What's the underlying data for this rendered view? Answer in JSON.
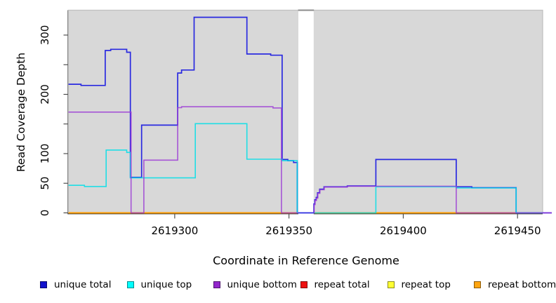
{
  "chart_data": {
    "type": "line",
    "step": true,
    "title": "",
    "xlabel": "Coordinate in Reference Genome",
    "ylabel": "Read Coverage Depth",
    "xlim": [
      2619253.5,
      2619461
    ],
    "ylim": [
      0,
      342
    ],
    "xticks": [
      2619300,
      2619350,
      2619400,
      2619450
    ],
    "yticks": [
      0,
      50,
      100,
      150,
      200,
      250,
      300
    ],
    "ytick_labels": [
      "0",
      "50",
      "100",
      "",
      "200",
      "",
      "300"
    ],
    "grid": false,
    "plot_bg": "#d8d8d8",
    "border_color": "#bfbfbf",
    "axis_color": "#2e2e2e",
    "tick_color": "#404040",
    "no_data_region": {
      "x1": 2619354.1,
      "x2": 2619360.8,
      "fill": "#ffffff",
      "cap_color": "#909090"
    },
    "series": [
      {
        "name": "repeat total",
        "color": "#dd2222",
        "alpha": 1,
        "width": 1.5,
        "runs": [
          {
            "steps": [
              [
                2619253.5,
                0
              ]
            ],
            "end": 2619354.1
          },
          {
            "steps": [
              [
                2619360.8,
                0
              ]
            ],
            "end": 2619461
          }
        ]
      },
      {
        "name": "repeat top",
        "color": "#f5f500",
        "alpha": 1,
        "width": 1.5,
        "runs": [
          {
            "steps": [
              [
                2619253.5,
                0
              ]
            ],
            "end": 2619354.1
          },
          {
            "steps": [
              [
                2619360.8,
                0
              ]
            ],
            "end": 2619461
          }
        ]
      },
      {
        "name": "repeat bottom",
        "color": "#ff9d00",
        "alpha": 1,
        "width": 2,
        "runs": [
          {
            "steps": [
              [
                2619253.5,
                0
              ]
            ],
            "end": 2619354.1
          },
          {
            "steps": [
              [
                2619360.8,
                0
              ]
            ],
            "end": 2619461
          }
        ]
      },
      {
        "name": "unique total",
        "color": "#2a2ae0",
        "alpha": 1,
        "width": 1.7,
        "runs": [
          {
            "steps": [
              [
                2619253.5,
                217
              ],
              [
                2619259,
                215
              ],
              [
                2619269.6,
                274
              ],
              [
                2619272,
                276
              ],
              [
                2619279,
                271
              ],
              [
                2619280.6,
                60
              ],
              [
                2619285.5,
                148
              ],
              [
                2619301.3,
                236
              ],
              [
                2619303,
                241
              ],
              [
                2619308.5,
                330
              ],
              [
                2619331.6,
                268
              ],
              [
                2619342,
                266
              ],
              [
                2619347,
                90
              ],
              [
                2619349.5,
                88
              ],
              [
                2619352,
                85
              ],
              [
                2619353.6,
                0
              ],
              [
                2619360.9,
                15
              ],
              [
                2619361.3,
                22
              ],
              [
                2619361.9,
                26
              ],
              [
                2619362.5,
                34
              ],
              [
                2619363.4,
                40
              ],
              [
                2619365.3,
                44
              ],
              [
                2619375.5,
                45.5
              ],
              [
                2619388,
                90
              ],
              [
                2619423.2,
                44
              ],
              [
                2619430,
                42.5
              ],
              [
                2619449.4,
                0
              ]
            ],
            "end": 2619465
          }
        ]
      },
      {
        "name": "unique top",
        "color": "#00dfe8",
        "alpha": 0.85,
        "width": 1.6,
        "runs": [
          {
            "steps": [
              [
                2619253.5,
                46.5
              ],
              [
                2619260.5,
                44.5
              ],
              [
                2619270,
                106
              ],
              [
                2619279,
                102
              ],
              [
                2619280.6,
                59
              ],
              [
                2619309,
                150.5
              ],
              [
                2619331.6,
                90.5
              ],
              [
                2619347,
                88
              ],
              [
                2619353.6,
                0
              ]
            ],
            "end": 2619354.1
          },
          {
            "steps": [
              [
                2619360.8,
                0
              ],
              [
                2619388,
                44
              ],
              [
                2619423.2,
                42
              ],
              [
                2619449.4,
                0
              ]
            ],
            "end": 2619461
          }
        ]
      },
      {
        "name": "unique bottom",
        "color": "#9a35d6",
        "alpha": 0.8,
        "width": 1.6,
        "runs": [
          {
            "steps": [
              [
                2619253.5,
                170
              ],
              [
                2619280.9,
                0
              ],
              [
                2619286.5,
                89
              ],
              [
                2619301.3,
                177.5
              ],
              [
                2619303,
                179
              ],
              [
                2619343,
                177
              ],
              [
                2619346.7,
                0
              ]
            ],
            "end": 2619354.1
          },
          {
            "steps": [
              [
                2619360.8,
                0
              ],
              [
                2619361,
                14
              ],
              [
                2619361.4,
                21
              ],
              [
                2619362,
                25
              ],
              [
                2619362.6,
                33
              ],
              [
                2619363.5,
                39
              ],
              [
                2619365.4,
                43.5
              ],
              [
                2619375.5,
                45
              ],
              [
                2619423.2,
                0
              ]
            ],
            "end": 2619465
          }
        ]
      }
    ],
    "legend": {
      "position": "bottom",
      "items": [
        {
          "label": "unique total",
          "color": "#1111cc"
        },
        {
          "label": "unique top",
          "color": "#00ffff"
        },
        {
          "label": "unique bottom",
          "color": "#9326cc"
        },
        {
          "label": "repeat total",
          "color": "#ee1111"
        },
        {
          "label": "repeat top",
          "color": "#ffff33"
        },
        {
          "label": "repeat bottom",
          "color": "#ffa510"
        }
      ]
    }
  }
}
